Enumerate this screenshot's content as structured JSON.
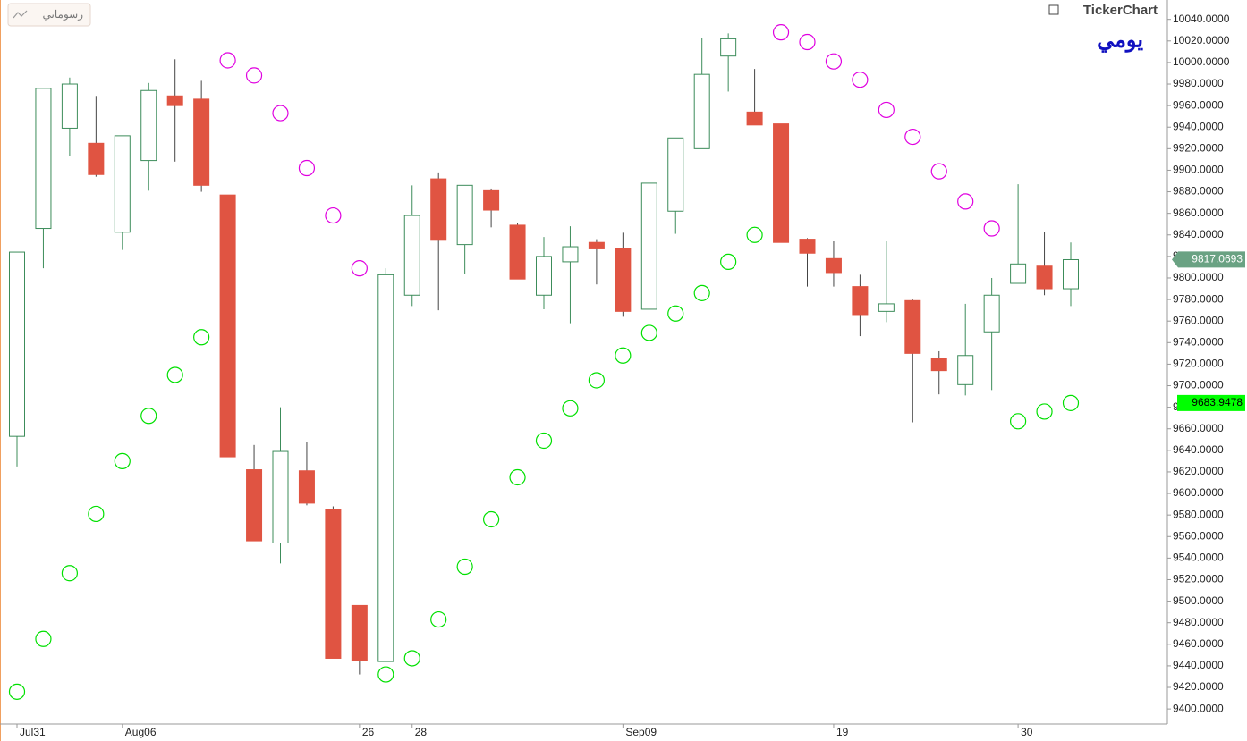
{
  "toolbar_button": "رسوماتي",
  "logo": "TickerChart",
  "period": "يومي",
  "chart_data": {
    "type": "candlestick",
    "categories": [
      "Jul31",
      null,
      null,
      null,
      "Aug06",
      null,
      null,
      null,
      null,
      null,
      null,
      null,
      null,
      "26",
      null,
      "28",
      null,
      null,
      null,
      null,
      null,
      null,
      null,
      "Sep09",
      null,
      null,
      null,
      null,
      null,
      null,
      null,
      "19",
      null,
      null,
      null,
      null,
      null,
      null,
      "30",
      null,
      null
    ],
    "open": [
      9653,
      9846,
      9939,
      9925,
      9842.5,
      9909,
      9969,
      9966,
      9877,
      9622,
      9554,
      9621,
      9585,
      9496,
      9444,
      9784,
      9892,
      9831,
      9881,
      9849,
      9784,
      9815,
      9833,
      9827,
      9771,
      9862,
      9920,
      10006,
      9954,
      9943,
      9836,
      9818,
      9792,
      9769,
      9779,
      9725,
      9701,
      9750,
      9795,
      9811,
      9790
    ],
    "high": [
      9824,
      9976,
      9986,
      9969,
      9932,
      9981,
      10003,
      9983,
      9877,
      9645,
      9680,
      9648,
      9588,
      9496,
      9809,
      9886,
      9898,
      9886,
      9883,
      9851,
      9838,
      9848,
      9836,
      9842,
      9888,
      9930,
      10023,
      10027,
      9994,
      9943,
      9837,
      9834,
      9803,
      9834,
      9780,
      9732,
      9776,
      9800,
      9887,
      9843,
      9833
    ],
    "low": [
      9625,
      9809,
      9913,
      9894,
      9826,
      9881,
      9908,
      9880,
      9634,
      9556,
      9535,
      9589,
      9447,
      9432,
      9444,
      9774,
      9770,
      9804,
      9847,
      9799,
      9771,
      9758,
      9794,
      9764,
      9771,
      9841,
      9920,
      9973,
      9942,
      9833,
      9792,
      9792,
      9746,
      9759,
      9666,
      9692,
      9691,
      9696,
      9795,
      9784,
      9774
    ],
    "close": [
      9824,
      9976,
      9980,
      9896,
      9932,
      9974,
      9960,
      9886,
      9634,
      9556,
      9639,
      9591,
      9447,
      9445,
      9803,
      9858,
      9835,
      9886,
      9863,
      9799,
      9820,
      9829,
      9827,
      9769,
      9888,
      9930,
      9989,
      10022,
      9942,
      9833,
      9823,
      9805,
      9766,
      9776,
      9730,
      9714,
      9728,
      9784,
      9813,
      9790,
      9817
    ],
    "sar": [
      9416,
      9465,
      9526,
      9581,
      9630,
      9672,
      9710,
      9745,
      10002,
      9988,
      9953,
      9902,
      9858,
      9809,
      9432,
      9447,
      9483,
      9532,
      9576,
      9615,
      9649,
      9679,
      9705,
      9728,
      9749,
      9767,
      9786,
      9815,
      9840,
      10028,
      10019,
      10001,
      9984,
      9956,
      9931,
      9899,
      9871,
      9846,
      9667,
      9676,
      9683.9478
    ],
    "up_color": "#3c8c5a",
    "down_color": "#e05442",
    "sar_above_color": "#e000e0",
    "sar_below_color": "#00e000",
    "last_price": {
      "value": 9817.0693,
      "label": "9817.0693",
      "color": "#6aa283"
    },
    "last_sar": {
      "value": 9683.9478,
      "label": "9683.9478",
      "color": "#00ff00"
    },
    "ylim": [
      9386,
      10058
    ],
    "yticks": [
      {
        "value": 9400,
        "label": "9400.0000"
      },
      {
        "value": 9420,
        "label": "9420.0000"
      },
      {
        "value": 9440,
        "label": "9440.0000"
      },
      {
        "value": 9460,
        "label": "9460.0000"
      },
      {
        "value": 9480,
        "label": "9480.0000"
      },
      {
        "value": 9500,
        "label": "9500.0000"
      },
      {
        "value": 9520,
        "label": "9520.0000"
      },
      {
        "value": 9540,
        "label": "9540.0000"
      },
      {
        "value": 9560,
        "label": "9560.0000"
      },
      {
        "value": 9580,
        "label": "9580.0000"
      },
      {
        "value": 9600,
        "label": "9600.0000"
      },
      {
        "value": 9620,
        "label": "9620.0000"
      },
      {
        "value": 9640,
        "label": "9640.0000"
      },
      {
        "value": 9660,
        "label": "9660.0000"
      },
      {
        "value": 9680,
        "label": "9680.0000"
      },
      {
        "value": 9700,
        "label": "9700.0000"
      },
      {
        "value": 9720,
        "label": "9720.0000"
      },
      {
        "value": 9740,
        "label": "9740.0000"
      },
      {
        "value": 9760,
        "label": "9760.0000"
      },
      {
        "value": 9780,
        "label": "9780.0000"
      },
      {
        "value": 9800,
        "label": "9800.0000"
      },
      {
        "value": 9820,
        "label": "9820.0000"
      },
      {
        "value": 9840,
        "label": "9840.0000"
      },
      {
        "value": 9860,
        "label": "9860.0000"
      },
      {
        "value": 9880,
        "label": "9880.0000"
      },
      {
        "value": 9900,
        "label": "9900.0000"
      },
      {
        "value": 9920,
        "label": "9920.0000"
      },
      {
        "value": 9940,
        "label": "9940.0000"
      },
      {
        "value": 9960,
        "label": "9960.0000"
      },
      {
        "value": 9980,
        "label": "9980.0000"
      },
      {
        "value": 10000,
        "label": "10000.0000"
      },
      {
        "value": 10020,
        "label": "10020.0000"
      },
      {
        "value": 10040,
        "label": "10040.0000"
      }
    ],
    "grid": false
  }
}
